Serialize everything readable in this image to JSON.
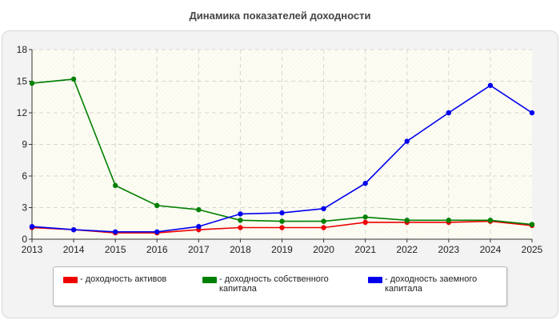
{
  "chart_data": {
    "type": "line",
    "title": "Динамика показателей доходности",
    "x": [
      "2013",
      "2014",
      "2015",
      "2016",
      "2017",
      "2018",
      "2019",
      "2020",
      "2021",
      "2022",
      "2023",
      "2024",
      "2025"
    ],
    "yticks": [
      "0",
      "3",
      "6",
      "9",
      "12",
      "15",
      "18"
    ],
    "ylim": [
      0,
      18
    ],
    "grid": true,
    "legend": "bottom",
    "series": [
      {
        "name": "- доходность активов",
        "color": "#ee0000",
        "values": [
          1.1,
          0.9,
          0.6,
          0.6,
          0.9,
          1.1,
          1.1,
          1.1,
          1.6,
          1.6,
          1.6,
          1.7,
          1.3
        ]
      },
      {
        "name": "- доходность собственного капитала",
        "color": "#008000",
        "values": [
          14.8,
          15.2,
          5.1,
          3.2,
          2.8,
          1.8,
          1.7,
          1.7,
          2.1,
          1.8,
          1.8,
          1.8,
          1.4
        ]
      },
      {
        "name": "- доходность заемного капитала",
        "color": "#0000ee",
        "values": [
          1.2,
          0.9,
          0.7,
          0.7,
          1.2,
          2.4,
          2.5,
          2.9,
          5.3,
          9.3,
          12.0,
          14.6,
          12.0
        ]
      }
    ]
  }
}
